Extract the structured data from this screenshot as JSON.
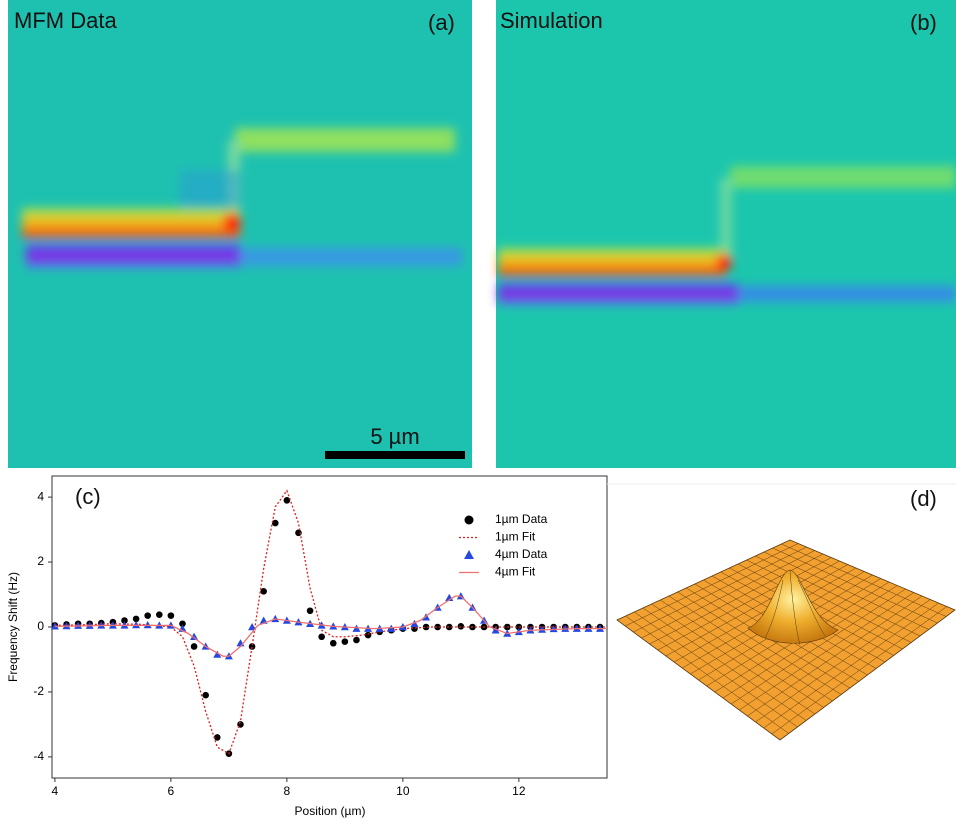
{
  "panels": {
    "a": {
      "title": "MFM Data",
      "label": "(a)",
      "scale_bar": "5 µm"
    },
    "b": {
      "title": "Simulation",
      "label": "(b)"
    },
    "d": {
      "label": "(d)"
    }
  },
  "chart_data": {
    "type": "scatter",
    "label": "(c)",
    "x_label": "Position (µm)",
    "y_label": "Frequency Shift (Hz)",
    "xlim": [
      3.95,
      13.52
    ],
    "ylim": [
      -4.65,
      4.65
    ],
    "xticks": [
      4,
      6,
      8,
      10,
      12
    ],
    "yticks": [
      -4,
      -2,
      0,
      2,
      4
    ],
    "legend": "upper right",
    "series": [
      {
        "name": "1µm Data",
        "type": "scatter",
        "marker": "circle",
        "color": "#000000",
        "x": [
          4.0,
          4.2,
          4.4,
          4.6,
          4.8,
          5.0,
          5.2,
          5.4,
          5.6,
          5.8,
          6.0,
          6.2,
          6.4,
          6.6,
          6.8,
          7.0,
          7.2,
          7.4,
          7.6,
          7.8,
          8.0,
          8.2,
          8.4,
          8.6,
          8.8,
          9.0,
          9.2,
          9.4,
          9.6,
          9.8,
          10.0,
          10.2,
          10.4,
          10.6,
          10.8,
          11.0,
          11.2,
          11.4,
          11.6,
          11.8,
          12.0,
          12.2,
          12.4,
          12.6,
          12.8,
          13.0,
          13.2,
          13.4
        ],
        "values": [
          0.05,
          0.08,
          0.1,
          0.1,
          0.12,
          0.15,
          0.2,
          0.25,
          0.35,
          0.38,
          0.35,
          0.1,
          -0.6,
          -2.1,
          -3.4,
          -3.9,
          -3.0,
          -0.6,
          1.1,
          3.2,
          3.9,
          2.9,
          0.5,
          -0.3,
          -0.5,
          -0.45,
          -0.4,
          -0.25,
          -0.15,
          -0.1,
          -0.05,
          -0.05,
          0,
          0,
          0,
          0.02,
          0,
          0,
          0,
          0,
          0,
          0,
          0,
          0,
          0,
          0,
          0,
          0
        ]
      },
      {
        "name": "1µm Fit",
        "type": "line",
        "dash": "dotted",
        "color": "#e02020",
        "x": [
          4,
          4.5,
          5,
          5.5,
          6,
          6.2,
          6.4,
          6.6,
          6.8,
          7,
          7.2,
          7.4,
          7.6,
          7.8,
          8,
          8.2,
          8.4,
          8.6,
          8.8,
          9,
          9.3,
          9.6,
          10,
          10.5,
          11,
          12,
          13,
          13.5
        ],
        "values": [
          0.05,
          0.07,
          0.1,
          0.08,
          0,
          -0.3,
          -1.2,
          -2.6,
          -3.7,
          -3.9,
          -2.9,
          -0.6,
          1.8,
          3.7,
          4.2,
          3.2,
          1.2,
          -0.1,
          -0.3,
          -0.3,
          -0.25,
          -0.15,
          -0.05,
          0,
          0,
          0,
          0,
          0
        ]
      },
      {
        "name": "4µm Data",
        "type": "scatter",
        "marker": "triangle",
        "color": "#2448e0",
        "x": [
          4.0,
          4.2,
          4.4,
          4.6,
          4.8,
          5.0,
          5.2,
          5.4,
          5.6,
          5.8,
          6.0,
          6.2,
          6.4,
          6.6,
          6.8,
          7.0,
          7.2,
          7.4,
          7.6,
          7.8,
          8.0,
          8.2,
          8.4,
          8.6,
          8.8,
          9.0,
          9.2,
          9.4,
          9.6,
          9.8,
          10.0,
          10.2,
          10.4,
          10.6,
          10.8,
          11.0,
          11.2,
          11.4,
          11.6,
          11.8,
          12.0,
          12.2,
          12.4,
          12.6,
          12.8,
          13.0,
          13.2,
          13.4
        ],
        "values": [
          0.02,
          0.03,
          0.04,
          0.04,
          0.05,
          0.05,
          0.05,
          0.06,
          0.06,
          0.05,
          0.05,
          -0.05,
          -0.3,
          -0.6,
          -0.85,
          -0.9,
          -0.5,
          0,
          0.2,
          0.25,
          0.2,
          0.15,
          0.1,
          0.05,
          0.02,
          0,
          -0.05,
          -0.05,
          -0.05,
          -0.05,
          0,
          0.1,
          0.3,
          0.6,
          0.9,
          0.95,
          0.6,
          0.2,
          -0.1,
          -0.2,
          -0.15,
          -0.1,
          -0.08,
          -0.06,
          -0.05,
          -0.05,
          -0.05,
          -0.05
        ]
      },
      {
        "name": "4µm Fit",
        "type": "line",
        "dash": "solid",
        "color": "#f07070",
        "x": [
          4,
          5,
          6,
          6.3,
          6.6,
          6.9,
          7.0,
          7.2,
          7.5,
          7.8,
          8.2,
          8.8,
          9.5,
          10.0,
          10.3,
          10.6,
          10.9,
          11.0,
          11.2,
          11.5,
          11.8,
          12.2,
          13,
          13.5
        ],
        "values": [
          0.02,
          0.05,
          0.05,
          -0.2,
          -0.6,
          -0.9,
          -0.9,
          -0.6,
          0.05,
          0.25,
          0.15,
          0.02,
          -0.05,
          0,
          0.2,
          0.6,
          0.95,
          0.95,
          0.6,
          0,
          -0.2,
          -0.1,
          -0.05,
          -0.05
        ]
      }
    ]
  }
}
